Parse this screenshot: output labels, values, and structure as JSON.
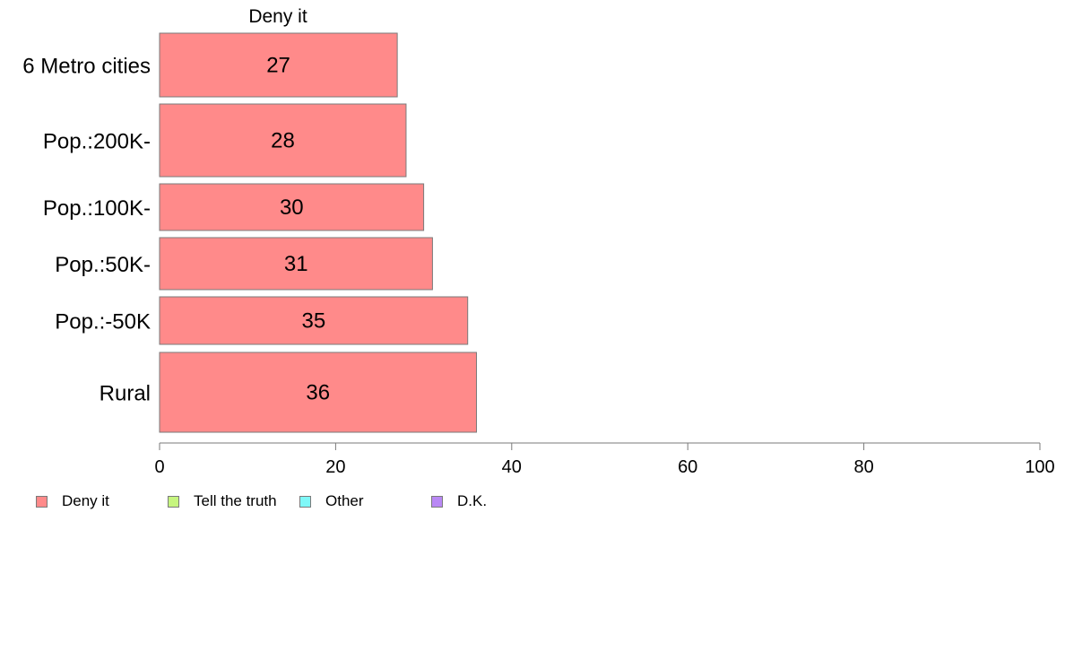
{
  "chart_data": {
    "type": "bar",
    "orientation": "horizontal",
    "title": "Deny it",
    "categories": [
      "6 Metro cities",
      "Pop.:200K-",
      "Pop.:100K-",
      "Pop.:50K-",
      "Pop.:-50K",
      "Rural"
    ],
    "series": [
      {
        "name": "Deny it",
        "values": [
          27,
          28,
          30,
          31,
          35,
          36
        ],
        "color": "#ff8a8a"
      }
    ],
    "xlim": [
      0,
      100
    ],
    "xticks": [
      "0",
      "20",
      "40",
      "60",
      "80",
      "100"
    ],
    "grid": false,
    "legend_position": "bottom-left",
    "legend": [
      {
        "label": "Deny it",
        "color": "#ff8a8a"
      },
      {
        "label": "Tell the truth",
        "color": "#c6f57f"
      },
      {
        "label": "Other",
        "color": "#7ff8f8"
      },
      {
        "label": "D.K.",
        "color": "#b988f5"
      }
    ]
  }
}
